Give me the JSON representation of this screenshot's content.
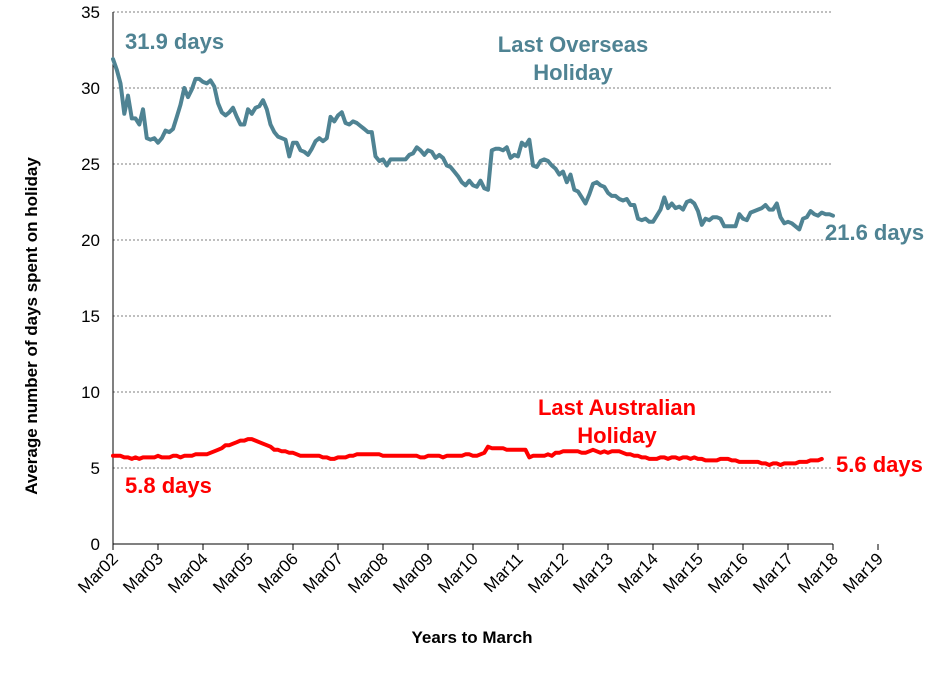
{
  "chart_data": {
    "type": "line",
    "title": "",
    "xlabel": "Years to March",
    "ylabel": "Average number of days spent on holiday",
    "ylim": [
      0,
      35
    ],
    "yticks": [
      0,
      5,
      10,
      15,
      20,
      25,
      30,
      35
    ],
    "x_tick_labels": [
      "Mar02",
      "Mar03",
      "Mar04",
      "Mar05",
      "Mar06",
      "Mar07",
      "Mar08",
      "Mar09",
      "Mar10",
      "Mar11",
      "Mar12",
      "Mar13",
      "Mar14",
      "Mar15",
      "Mar16",
      "Mar17",
      "Mar18",
      "Mar19"
    ],
    "x_start": "Mar02",
    "x_end": "Jun19",
    "x_step": "month",
    "grid": "horizontal dotted",
    "series": [
      {
        "name": "Last Overseas Holiday",
        "color": "#4f8393",
        "values": [
          31.9,
          31.2,
          30.3,
          28.3,
          29.5,
          28.0,
          28.0,
          27.6,
          28.6,
          26.7,
          26.6,
          26.7,
          26.4,
          26.7,
          27.2,
          27.1,
          27.3,
          28.1,
          28.9,
          30.0,
          29.4,
          29.9,
          30.6,
          30.6,
          30.4,
          30.3,
          30.5,
          30.1,
          29.0,
          28.4,
          28.2,
          28.4,
          28.7,
          28.1,
          27.6,
          27.6,
          28.6,
          28.3,
          28.7,
          28.8,
          29.2,
          28.6,
          27.6,
          27.1,
          26.8,
          26.7,
          26.6,
          25.5,
          26.4,
          26.4,
          25.9,
          25.8,
          25.6,
          26.0,
          26.5,
          26.7,
          26.5,
          26.7,
          28.1,
          27.8,
          28.2,
          28.4,
          27.7,
          27.6,
          27.8,
          27.7,
          27.5,
          27.3,
          27.1,
          27.1,
          25.5,
          25.2,
          25.3,
          24.9,
          25.3,
          25.3,
          25.3,
          25.3,
          25.3,
          25.6,
          25.7,
          26.1,
          25.9,
          25.6,
          25.9,
          25.8,
          25.4,
          25.6,
          25.4,
          24.9,
          24.8,
          24.5,
          24.2,
          23.8,
          23.6,
          23.9,
          23.6,
          23.5,
          23.9,
          23.4,
          23.3,
          25.9,
          26.0,
          26.0,
          25.9,
          26.1,
          25.4,
          25.6,
          25.5,
          26.4,
          26.2,
          26.6,
          24.9,
          24.8,
          25.2,
          25.3,
          25.2,
          24.9,
          24.7,
          24.3,
          24.5,
          23.8,
          24.3,
          23.3,
          23.2,
          22.8,
          22.4,
          23.0,
          23.7,
          23.8,
          23.6,
          23.5,
          23.1,
          22.9,
          22.9,
          22.7,
          22.6,
          22.7,
          22.3,
          22.3,
          21.4,
          21.3,
          21.4,
          21.2,
          21.2,
          21.6,
          22.0,
          22.8,
          22.1,
          22.4,
          22.1,
          22.2,
          22.0,
          22.5,
          22.6,
          22.4,
          21.9,
          21.0,
          21.4,
          21.3,
          21.5,
          21.5,
          21.4,
          20.9,
          20.9,
          20.9,
          20.9,
          21.7,
          21.4,
          21.3,
          21.8,
          21.9,
          22.0,
          22.1,
          22.3,
          22.0,
          22.0,
          22.4,
          21.5,
          21.1,
          21.2,
          21.1,
          20.9,
          20.7,
          21.4,
          21.5,
          21.9,
          21.7,
          21.6,
          21.8,
          21.7,
          21.7,
          21.6
        ]
      },
      {
        "name": "Last Australian Holiday",
        "color": "#ff0000",
        "values": [
          5.8,
          5.8,
          5.8,
          5.7,
          5.7,
          5.6,
          5.7,
          5.6,
          5.7,
          5.7,
          5.7,
          5.7,
          5.8,
          5.7,
          5.7,
          5.7,
          5.8,
          5.8,
          5.7,
          5.8,
          5.8,
          5.8,
          5.9,
          5.9,
          5.9,
          5.9,
          6.0,
          6.1,
          6.2,
          6.3,
          6.5,
          6.5,
          6.6,
          6.7,
          6.8,
          6.8,
          6.9,
          6.9,
          6.8,
          6.7,
          6.6,
          6.5,
          6.4,
          6.2,
          6.2,
          6.1,
          6.1,
          6.0,
          6.0,
          5.9,
          5.8,
          5.8,
          5.8,
          5.8,
          5.8,
          5.8,
          5.7,
          5.7,
          5.6,
          5.6,
          5.7,
          5.7,
          5.7,
          5.8,
          5.8,
          5.9,
          5.9,
          5.9,
          5.9,
          5.9,
          5.9,
          5.9,
          5.8,
          5.8,
          5.8,
          5.8,
          5.8,
          5.8,
          5.8,
          5.8,
          5.8,
          5.8,
          5.7,
          5.7,
          5.8,
          5.8,
          5.8,
          5.8,
          5.7,
          5.8,
          5.8,
          5.8,
          5.8,
          5.8,
          5.9,
          5.9,
          5.8,
          5.8,
          5.9,
          6.0,
          6.4,
          6.3,
          6.3,
          6.3,
          6.3,
          6.2,
          6.2,
          6.2,
          6.2,
          6.2,
          6.2,
          5.7,
          5.8,
          5.8,
          5.8,
          5.8,
          5.9,
          5.8,
          6.0,
          6.0,
          6.1,
          6.1,
          6.1,
          6.1,
          6.1,
          6.0,
          6.0,
          6.1,
          6.2,
          6.1,
          6.0,
          6.1,
          6.0,
          6.1,
          6.1,
          6.1,
          6.0,
          5.9,
          5.9,
          5.8,
          5.8,
          5.7,
          5.7,
          5.6,
          5.6,
          5.6,
          5.7,
          5.7,
          5.6,
          5.7,
          5.7,
          5.6,
          5.7,
          5.7,
          5.6,
          5.7,
          5.6,
          5.6,
          5.5,
          5.5,
          5.5,
          5.5,
          5.6,
          5.6,
          5.6,
          5.5,
          5.5,
          5.4,
          5.4,
          5.4,
          5.4,
          5.4,
          5.4,
          5.3,
          5.3,
          5.2,
          5.3,
          5.3,
          5.2,
          5.3,
          5.3,
          5.3,
          5.3,
          5.4,
          5.4,
          5.4,
          5.5,
          5.5,
          5.5,
          5.6
        ]
      }
    ],
    "annotations": [
      {
        "text": "31.9 days",
        "series": 0,
        "color": "#4f8393"
      },
      {
        "text": "Last Overseas",
        "series": 0,
        "color": "#4f8393"
      },
      {
        "text": "Holiday",
        "series": 0,
        "color": "#4f8393"
      },
      {
        "text": "21.6 days",
        "series": 0,
        "color": "#4f8393"
      },
      {
        "text": "Last Australian",
        "series": 1,
        "color": "#ff0000"
      },
      {
        "text": "Holiday",
        "series": 1,
        "color": "#ff0000"
      },
      {
        "text": "5.8 days",
        "series": 1,
        "color": "#ff0000"
      },
      {
        "text": "5.6 days",
        "series": 1,
        "color": "#ff0000"
      }
    ]
  }
}
